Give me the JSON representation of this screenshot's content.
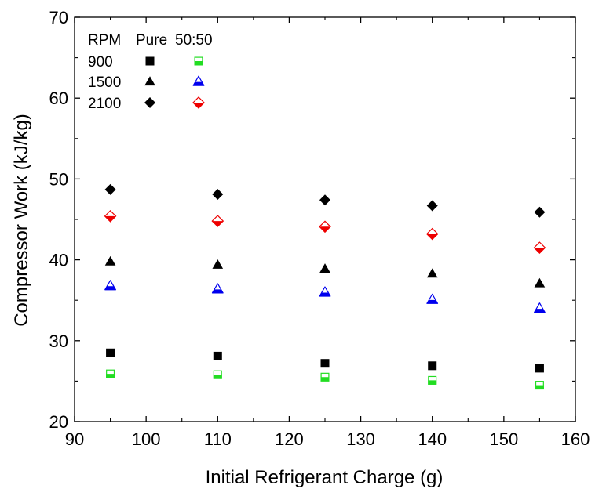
{
  "chart_data": {
    "type": "scatter",
    "title": "",
    "xlabel": "Initial Refrigerant Charge (g)",
    "ylabel": "Compressor Work (kJ/kg)",
    "xlim": [
      90,
      160
    ],
    "ylim": [
      20,
      70
    ],
    "xticks": [
      90,
      100,
      110,
      120,
      130,
      140,
      150,
      160
    ],
    "yticks": [
      20,
      30,
      40,
      50,
      60,
      70
    ],
    "x": [
      95,
      110,
      125,
      140,
      155
    ],
    "legend": {
      "header_rpm": "RPM",
      "header_pure": "Pure",
      "header_mix": "50:50",
      "placement": "top-left",
      "rows": [
        "900",
        "1500",
        "2100"
      ]
    },
    "series": [
      {
        "rpm": "900",
        "fluid": "Pure",
        "marker": "square",
        "fill": "solid",
        "color": "#000000",
        "values": [
          28.5,
          28.1,
          27.2,
          26.9,
          26.6
        ]
      },
      {
        "rpm": "900",
        "fluid": "50:50",
        "marker": "square",
        "fill": "half",
        "color": "#22dd22",
        "values": [
          25.9,
          25.8,
          25.5,
          25.1,
          24.5
        ]
      },
      {
        "rpm": "1500",
        "fluid": "Pure",
        "marker": "triangle",
        "fill": "solid",
        "color": "#000000",
        "values": [
          39.8,
          39.4,
          38.9,
          38.3,
          37.1
        ]
      },
      {
        "rpm": "1500",
        "fluid": "50:50",
        "marker": "triangle",
        "fill": "half",
        "color": "#0000ee",
        "values": [
          36.8,
          36.4,
          36.0,
          35.1,
          34.0
        ]
      },
      {
        "rpm": "2100",
        "fluid": "Pure",
        "marker": "diamond",
        "fill": "solid",
        "color": "#000000",
        "values": [
          48.7,
          48.1,
          47.4,
          46.7,
          45.9
        ]
      },
      {
        "rpm": "2100",
        "fluid": "50:50",
        "marker": "diamond",
        "fill": "half",
        "color": "#ee0000",
        "values": [
          45.4,
          44.8,
          44.1,
          43.2,
          41.5
        ]
      }
    ]
  }
}
